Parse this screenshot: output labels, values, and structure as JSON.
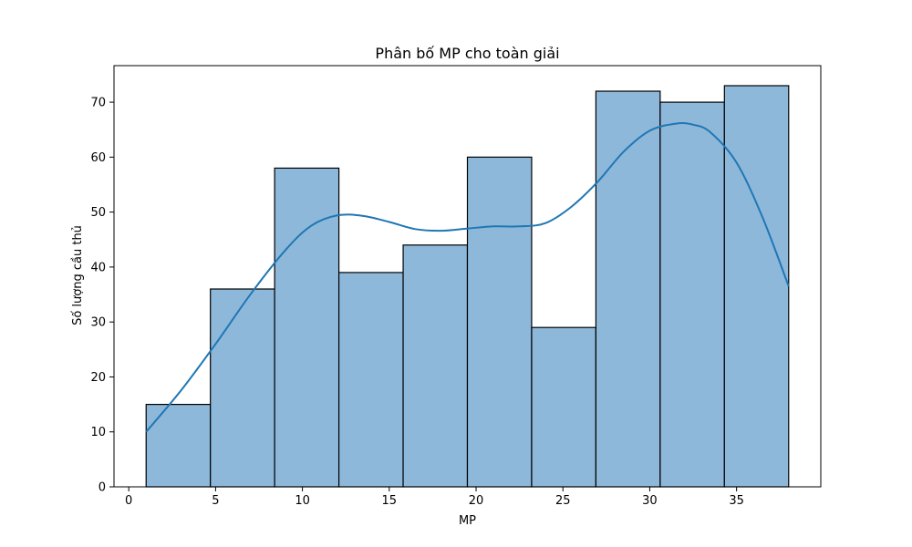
{
  "chart_data": {
    "type": "bar",
    "title": "Phân bố MP cho toàn giải",
    "xlabel": "MP",
    "ylabel": "Số lượng cầu thủ",
    "xlim": [
      -0.85,
      39.85
    ],
    "ylim": [
      0,
      76.65
    ],
    "x_ticks": [
      0,
      5,
      10,
      15,
      20,
      25,
      30,
      35
    ],
    "y_ticks": [
      0,
      10,
      20,
      30,
      40,
      50,
      60,
      70
    ],
    "bins": [
      {
        "start": 1.0,
        "end": 4.7,
        "count": 15
      },
      {
        "start": 4.7,
        "end": 8.4,
        "count": 36
      },
      {
        "start": 8.4,
        "end": 12.1,
        "count": 58
      },
      {
        "start": 12.1,
        "end": 15.8,
        "count": 39
      },
      {
        "start": 15.8,
        "end": 19.5,
        "count": 44
      },
      {
        "start": 19.5,
        "end": 23.2,
        "count": 60
      },
      {
        "start": 23.2,
        "end": 26.9,
        "count": 29
      },
      {
        "start": 26.9,
        "end": 30.6,
        "count": 72
      },
      {
        "start": 30.6,
        "end": 34.3,
        "count": 70
      },
      {
        "start": 34.3,
        "end": 38.0,
        "count": 73
      }
    ],
    "kde": {
      "x": [
        1,
        3,
        5,
        7,
        9,
        10.5,
        12,
        13.5,
        15,
        16.5,
        18,
        19.5,
        21,
        22.5,
        24,
        25.5,
        27,
        28.5,
        30,
        31.5,
        32.5,
        33.5,
        35,
        36.5,
        38
      ],
      "y": [
        10,
        17.5,
        26,
        35,
        43,
        47.5,
        49.4,
        49.3,
        48.2,
        46.9,
        46.6,
        47,
        47.4,
        47.4,
        48,
        51,
        55.5,
        61,
        64.8,
        66.1,
        65.9,
        64.5,
        59,
        49,
        36.5
      ]
    },
    "colors": {
      "bar_fill": "#8db8da",
      "bar_edge": "#000000",
      "kde_line": "#1f77b4"
    },
    "grid": false,
    "legend": "none"
  }
}
